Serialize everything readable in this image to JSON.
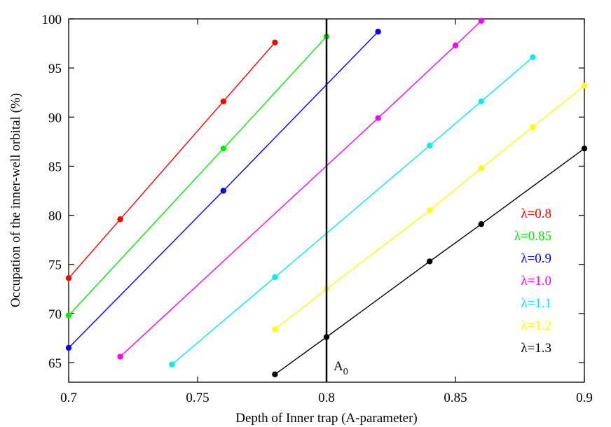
{
  "chart_data": {
    "type": "line",
    "title": "",
    "xlabel": "Depth of Inner trap (A-parameter)",
    "ylabel": "Occupation of the inner-well orbital (%)",
    "xlim": [
      0.7,
      0.9
    ],
    "ylim": [
      63,
      100
    ],
    "x_ticks": [
      "0.7",
      "0.75",
      "0.8",
      "0.85",
      "0.9"
    ],
    "y_ticks": [
      "65",
      "70",
      "75",
      "80",
      "85",
      "90",
      "95",
      "100"
    ],
    "grid": false,
    "legend_position": "right",
    "series": [
      {
        "name": "λ=0.8",
        "color": "#ff0000",
        "x": [
          0.7,
          0.72,
          0.76,
          0.78
        ],
        "y": [
          73.6,
          79.6,
          91.6,
          97.6
        ]
      },
      {
        "name": "λ=0.85",
        "color": "#00ee00",
        "x": [
          0.7,
          0.76,
          0.8
        ],
        "y": [
          69.8,
          86.8,
          98.2
        ]
      },
      {
        "name": "λ=0.9",
        "color": "#0000ff",
        "x": [
          0.7,
          0.76,
          0.82
        ],
        "y": [
          66.5,
          82.5,
          98.7
        ]
      },
      {
        "name": "λ=1.0",
        "color": "#ff00ff",
        "x": [
          0.72,
          0.82,
          0.85,
          0.86
        ],
        "y": [
          65.6,
          89.9,
          97.3,
          99.8
        ]
      },
      {
        "name": "λ=1.1",
        "color": "#00eeee",
        "x": [
          0.74,
          0.78,
          0.84,
          0.86,
          0.88
        ],
        "y": [
          64.8,
          73.7,
          87.1,
          91.6,
          96.1
        ]
      },
      {
        "name": "λ=1.2",
        "color": "#ffff00",
        "x": [
          0.78,
          0.8,
          0.84,
          0.86,
          0.88,
          0.9
        ],
        "y": [
          68.4,
          72.5,
          80.5,
          84.8,
          89.0,
          93.2
        ]
      },
      {
        "name": "λ=1.3",
        "color": "#000000",
        "x": [
          0.78,
          0.8,
          0.84,
          0.86,
          0.9
        ],
        "y": [
          63.8,
          67.6,
          75.3,
          79.1,
          86.8
        ]
      }
    ],
    "vertical_line": {
      "x": 0.8,
      "label_main": "A",
      "label_sub": "0"
    }
  }
}
